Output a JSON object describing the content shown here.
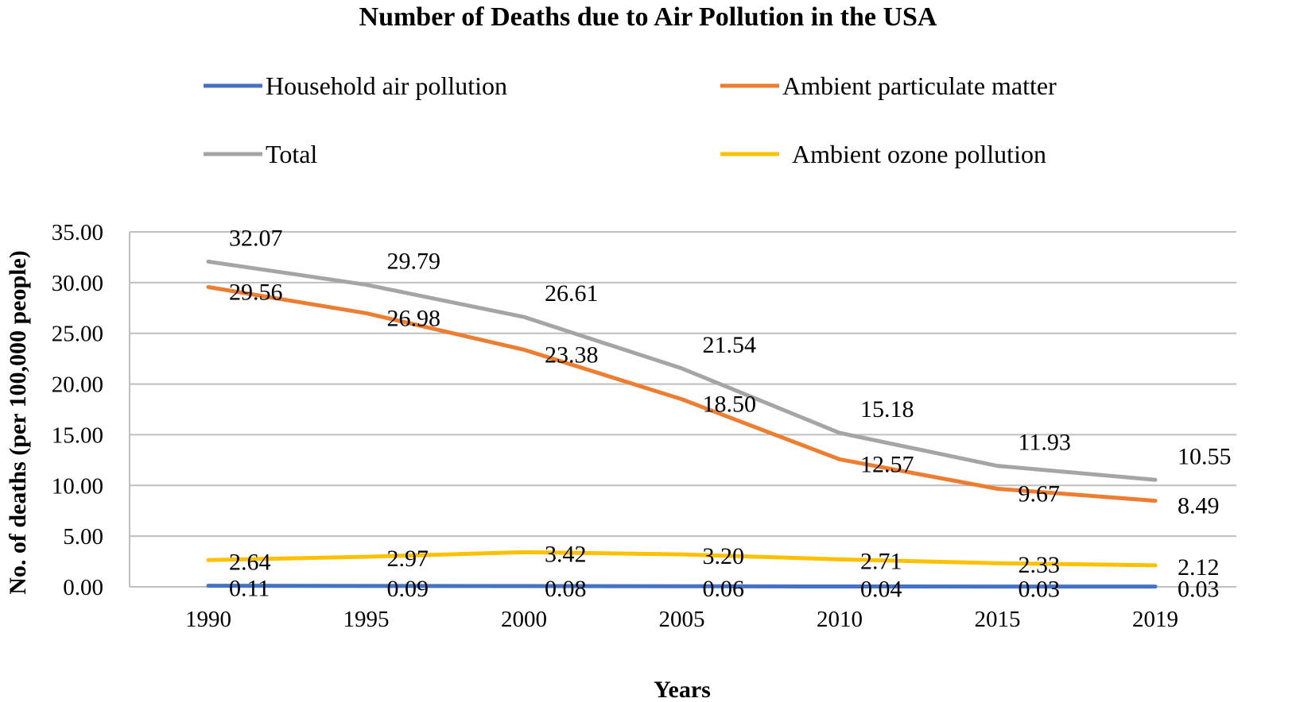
{
  "chart_data": {
    "type": "line",
    "title": "Number of Deaths due to Air Pollution in the USA",
    "xlabel": "Years",
    "ylabel": "No. of deaths (per 100,000 people)",
    "categories": [
      "1990",
      "1995",
      "2000",
      "2005",
      "2010",
      "2015",
      "2019"
    ],
    "ylim": [
      0,
      35
    ],
    "yticks": [
      "0.00",
      "5.00",
      "10.00",
      "15.00",
      "20.00",
      "25.00",
      "30.00",
      "35.00"
    ],
    "ytick_values": [
      0,
      5,
      10,
      15,
      20,
      25,
      30,
      35
    ],
    "grid": "horizontal",
    "legend_position": "top",
    "series": [
      {
        "name": "Household air pollution",
        "color": "#4472C4",
        "values": [
          0.11,
          0.09,
          0.08,
          0.06,
          0.04,
          0.03,
          0.03
        ],
        "labels": [
          "0.11",
          "0.09",
          "0.08",
          "0.06",
          "0.04",
          "0.03",
          "0.03"
        ]
      },
      {
        "name": "Ambient particulate matter",
        "color": "#ED7D31",
        "values": [
          29.56,
          26.98,
          23.38,
          18.5,
          12.57,
          9.67,
          8.49
        ],
        "labels": [
          "29.56",
          "26.98",
          "23.38",
          "18.50",
          "12.57",
          "9.67",
          "8.49"
        ]
      },
      {
        "name": "Total",
        "color": "#A5A5A5",
        "values": [
          32.07,
          29.79,
          26.61,
          21.54,
          15.18,
          11.93,
          10.55
        ],
        "labels": [
          "32.07",
          "29.79",
          "26.61",
          "21.54",
          "15.18",
          "11.93",
          "10.55"
        ]
      },
      {
        "name": "Ambient ozone pollution",
        "color": "#FFC000",
        "values": [
          2.64,
          2.97,
          3.42,
          3.2,
          2.71,
          2.33,
          2.12
        ],
        "labels": [
          "2.64",
          "2.97",
          "3.42",
          "3.20",
          "2.71",
          "2.33",
          "2.12"
        ]
      }
    ]
  }
}
